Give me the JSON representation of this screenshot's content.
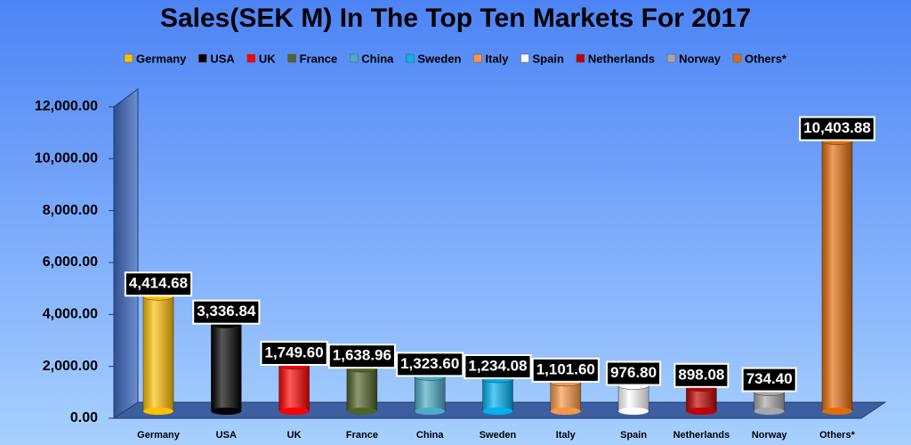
{
  "chart_data": {
    "type": "bar",
    "title": "Sales(SEK M) In The Top Ten Markets For 2017",
    "categories": [
      "Germany",
      "USA",
      "UK",
      "France",
      "China",
      "Sweden",
      "Italy",
      "Spain",
      "Netherlands",
      "Norway",
      "Others*"
    ],
    "values": [
      4414.68,
      3336.84,
      1749.6,
      1638.96,
      1323.6,
      1234.08,
      1101.6,
      976.8,
      898.08,
      734.4,
      10403.88
    ],
    "value_labels": [
      "4,414.68",
      "3,336.84",
      "1,749.60",
      "1,638.96",
      "1,323.60",
      "1,234.08",
      "1,101.60",
      "976.80",
      "898.08",
      "734.40",
      "10,403.88"
    ],
    "colors": [
      "#ffc000",
      "#000000",
      "#ff0000",
      "#4f6228",
      "#4bacc6",
      "#00b0f0",
      "#f79646",
      "#ffffff",
      "#c00000",
      "#a6a6a6",
      "#e36c09"
    ],
    "ylim": [
      0,
      12000
    ],
    "yticks": [
      {
        "value": 0,
        "label": "0.00"
      },
      {
        "value": 2000,
        "label": "2,000.00"
      },
      {
        "value": 4000,
        "label": "4,000.00"
      },
      {
        "value": 6000,
        "label": "6,000.00"
      },
      {
        "value": 8000,
        "label": "8,000.00"
      },
      {
        "value": 10000,
        "label": "10,000.00"
      },
      {
        "value": 12000,
        "label": "12,000.00"
      }
    ],
    "legend": "top"
  }
}
